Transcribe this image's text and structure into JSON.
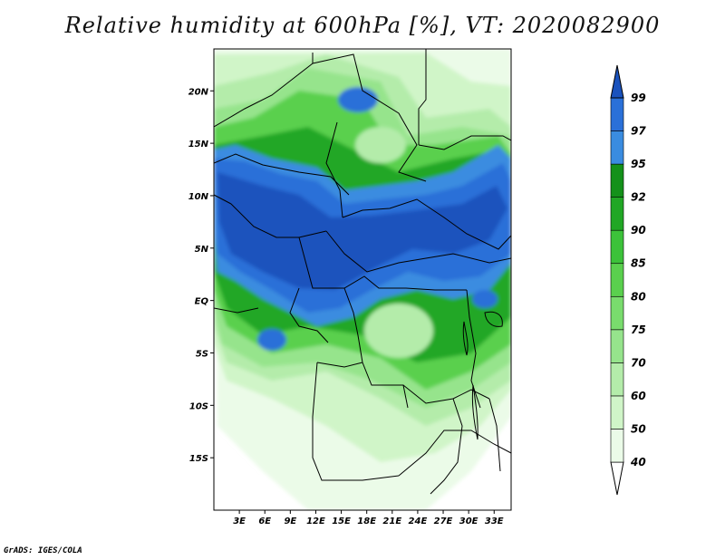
{
  "title": "Relative humidity at 600hPa [%], VT: 2020082900",
  "credit": "GrADS: IGES/COLA",
  "map": {
    "variable": "Relative humidity",
    "level": "600hPa",
    "units": "%",
    "valid_time": "2020082900",
    "lon_range": [
      0,
      35
    ],
    "lat_range": [
      -20,
      24
    ],
    "lat_ticks": [
      {
        "value": 20,
        "label": "20N"
      },
      {
        "value": 15,
        "label": "15N"
      },
      {
        "value": 10,
        "label": "10N"
      },
      {
        "value": 5,
        "label": "5N"
      },
      {
        "value": 0,
        "label": "EQ"
      },
      {
        "value": -5,
        "label": "5S"
      },
      {
        "value": -10,
        "label": "10S"
      },
      {
        "value": -15,
        "label": "15S"
      }
    ],
    "lon_ticks": [
      {
        "value": 3,
        "label": "3E"
      },
      {
        "value": 6,
        "label": "6E"
      },
      {
        "value": 9,
        "label": "9E"
      },
      {
        "value": 12,
        "label": "12E"
      },
      {
        "value": 15,
        "label": "15E"
      },
      {
        "value": 18,
        "label": "18E"
      },
      {
        "value": 21,
        "label": "21E"
      },
      {
        "value": 24,
        "label": "24E"
      },
      {
        "value": 27,
        "label": "27E"
      },
      {
        "value": 30,
        "label": "30E"
      },
      {
        "value": 33,
        "label": "33E"
      }
    ]
  },
  "colorbar": {
    "levels": [
      "40",
      "50",
      "60",
      "70",
      "75",
      "80",
      "85",
      "90",
      "92",
      "95",
      "97",
      "99"
    ],
    "colors": [
      "#ebfbe8",
      "#d0f5c8",
      "#b4ecaa",
      "#96e48c",
      "#79dc6d",
      "#5ad04e",
      "#3cc23a",
      "#21a725",
      "#14911a",
      "#3a8ce0",
      "#2a70d8",
      "#1a52bd"
    ]
  }
}
